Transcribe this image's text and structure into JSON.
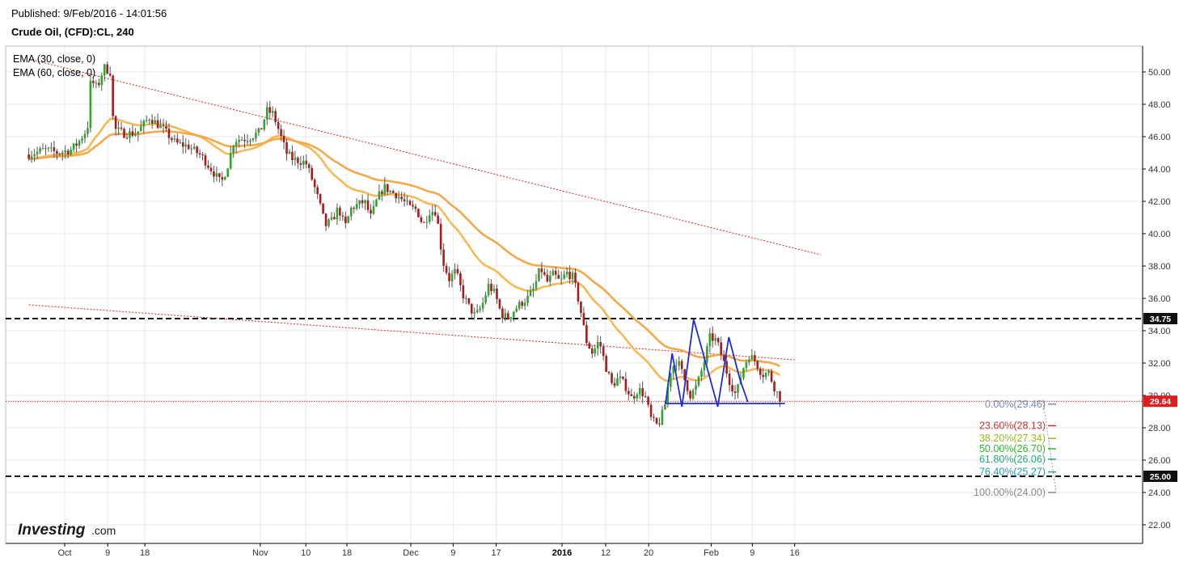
{
  "header": {
    "published": "Published: 9/Feb/2016 - 14:01:56",
    "symbol": "Crude Oil, (CFD):CL, 240"
  },
  "logo": {
    "main": "Investing",
    "suffix": ".com"
  },
  "chart_data": {
    "type": "candlestick",
    "legend": [
      "EMA (30, close, 0)",
      "EMA (60, close, 0)"
    ],
    "y_ticks": [
      "50.00",
      "48.00",
      "46.00",
      "44.00",
      "42.00",
      "40.00",
      "38.00",
      "36.00",
      "34.00",
      "32.00",
      "30.00",
      "28.00",
      "26.00",
      "24.00",
      "22.00"
    ],
    "ylim": [
      21.0,
      51.6
    ],
    "x_ticks": [
      {
        "label": "Oct",
        "t": 0.0
      },
      {
        "label": "9",
        "t": 6.6
      },
      {
        "label": "18",
        "t": 12.3
      },
      {
        "label": "Nov",
        "t": 30.0
      },
      {
        "label": "10",
        "t": 37.0
      },
      {
        "label": "18",
        "t": 43.3
      },
      {
        "label": "Dec",
        "t": 53.1
      },
      {
        "label": "9",
        "t": 59.6
      },
      {
        "label": "17",
        "t": 66.2
      },
      {
        "label": "2016",
        "t": 76.3,
        "bold": true
      },
      {
        "label": "12",
        "t": 83.0
      },
      {
        "label": "20",
        "t": 89.6
      },
      {
        "label": "Feb",
        "t": 99.2
      },
      {
        "label": "9",
        "t": 105.5
      },
      {
        "label": "16",
        "t": 112.0
      }
    ],
    "price_path": [
      [
        -5.5,
        44.9
      ],
      [
        -3,
        45.2
      ],
      [
        -1,
        45.0
      ],
      [
        1,
        45.2
      ],
      [
        2,
        45.6
      ],
      [
        3.5,
        46.5
      ],
      [
        4,
        49.5
      ],
      [
        5,
        49.0
      ],
      [
        6,
        50.3
      ],
      [
        7,
        50.0
      ],
      [
        7.5,
        46.5
      ],
      [
        9,
        46.2
      ],
      [
        11,
        46.2
      ],
      [
        13,
        47.2
      ],
      [
        15,
        46.5
      ],
      [
        17,
        45.6
      ],
      [
        19,
        45.4
      ],
      [
        21,
        44.8
      ],
      [
        23,
        43.7
      ],
      [
        24,
        43.1
      ],
      [
        25,
        44.2
      ],
      [
        26,
        45.8
      ],
      [
        28,
        45.9
      ],
      [
        30,
        46.3
      ],
      [
        31,
        47.6
      ],
      [
        32,
        47.4
      ],
      [
        33,
        46.2
      ],
      [
        34,
        45.0
      ],
      [
        35,
        44.6
      ],
      [
        37,
        44.4
      ],
      [
        38,
        43.3
      ],
      [
        39,
        42.0
      ],
      [
        40,
        40.5
      ],
      [
        41,
        40.8
      ],
      [
        42,
        41.6
      ],
      [
        43,
        40.4
      ],
      [
        44,
        41.6
      ],
      [
        45,
        41.8
      ],
      [
        46,
        42.0
      ],
      [
        47,
        41.0
      ],
      [
        48,
        42.2
      ],
      [
        49,
        42.9
      ],
      [
        50,
        42.6
      ],
      [
        51,
        42.4
      ],
      [
        52,
        42.0
      ],
      [
        53,
        41.6
      ],
      [
        54,
        41.5
      ],
      [
        55,
        40.5
      ],
      [
        56,
        41.4
      ],
      [
        57,
        41.4
      ],
      [
        58,
        38.3
      ],
      [
        59,
        37.2
      ],
      [
        60,
        37.7
      ],
      [
        61,
        36.3
      ],
      [
        62,
        35.5
      ],
      [
        63,
        34.9
      ],
      [
        64,
        35.5
      ],
      [
        65,
        36.8
      ],
      [
        66,
        36.3
      ],
      [
        67,
        35.0
      ],
      [
        68,
        34.8
      ],
      [
        69,
        35.3
      ],
      [
        70,
        35.7
      ],
      [
        71,
        36.0
      ],
      [
        72,
        36.6
      ],
      [
        73,
        37.9
      ],
      [
        74,
        37.0
      ],
      [
        75,
        37.5
      ],
      [
        76,
        37.0
      ],
      [
        77,
        37.6
      ],
      [
        78,
        37.3
      ],
      [
        79,
        35.6
      ],
      [
        80,
        33.4
      ],
      [
        81,
        32.6
      ],
      [
        82,
        33.4
      ],
      [
        83,
        31.8
      ],
      [
        84,
        30.6
      ],
      [
        85,
        31.1
      ],
      [
        86,
        30.6
      ],
      [
        87,
        29.8
      ],
      [
        88,
        30.4
      ],
      [
        89,
        30.0
      ],
      [
        90,
        28.5
      ],
      [
        91,
        28.1
      ],
      [
        92,
        29.2
      ],
      [
        93,
        31.6
      ],
      [
        94,
        32.2
      ],
      [
        95,
        31.1
      ],
      [
        96,
        30.0
      ],
      [
        97,
        30.6
      ],
      [
        98,
        31.9
      ],
      [
        99,
        33.6
      ],
      [
        100,
        33.4
      ],
      [
        101,
        32.2
      ],
      [
        102,
        30.9
      ],
      [
        103,
        30.0
      ],
      [
        104,
        31.6
      ],
      [
        105,
        32.5
      ],
      [
        106,
        32.1
      ],
      [
        107,
        31.3
      ],
      [
        108,
        31.4
      ],
      [
        109,
        30.4
      ],
      [
        110,
        29.64
      ]
    ],
    "trendlines": [
      {
        "t1": -5.5,
        "p1": 50.8,
        "t2": 116,
        "p2": 38.7,
        "color": "#dd2222"
      },
      {
        "t1": -5.5,
        "p1": 35.6,
        "t2": 112,
        "p2": 32.2,
        "color": "#dd2222"
      }
    ],
    "horizontal_levels": [
      {
        "price": 34.75,
        "label": "34.75",
        "style": "black"
      },
      {
        "price": 25.0,
        "label": "25.00",
        "style": "black"
      },
      {
        "price": 29.64,
        "label": "29.64",
        "style": "red"
      }
    ],
    "pattern": [
      [
        92.2,
        29.5
      ],
      [
        93.2,
        32.6
      ],
      [
        94.7,
        29.3
      ],
      [
        96.5,
        34.7
      ],
      [
        98.5,
        31.8
      ],
      [
        100.2,
        29.3
      ],
      [
        101.9,
        33.6
      ],
      [
        103.6,
        31.0
      ],
      [
        104.8,
        29.6
      ]
    ],
    "pattern_neckline": {
      "t1": 92.2,
      "t2": 110.5,
      "price": 29.5
    },
    "fibonacci": [
      {
        "label": "0.00%(29.46)",
        "price": 29.46,
        "color": "#7788bb"
      },
      {
        "label": "23.60%(28.13)",
        "price": 28.13,
        "color": "#cc3333"
      },
      {
        "label": "38.20%(27.34)",
        "price": 27.34,
        "color": "#99bb22"
      },
      {
        "label": "50.00%(26.70)",
        "price": 26.7,
        "color": "#22bb22"
      },
      {
        "label": "61.80%(26.06)",
        "price": 26.06,
        "color": "#22aa77"
      },
      {
        "label": "76.40%(25.27)",
        "price": 25.27,
        "color": "#2299bb"
      },
      {
        "label": "100.00%(24.00)",
        "price": 24.0,
        "color": "#888888"
      }
    ]
  }
}
